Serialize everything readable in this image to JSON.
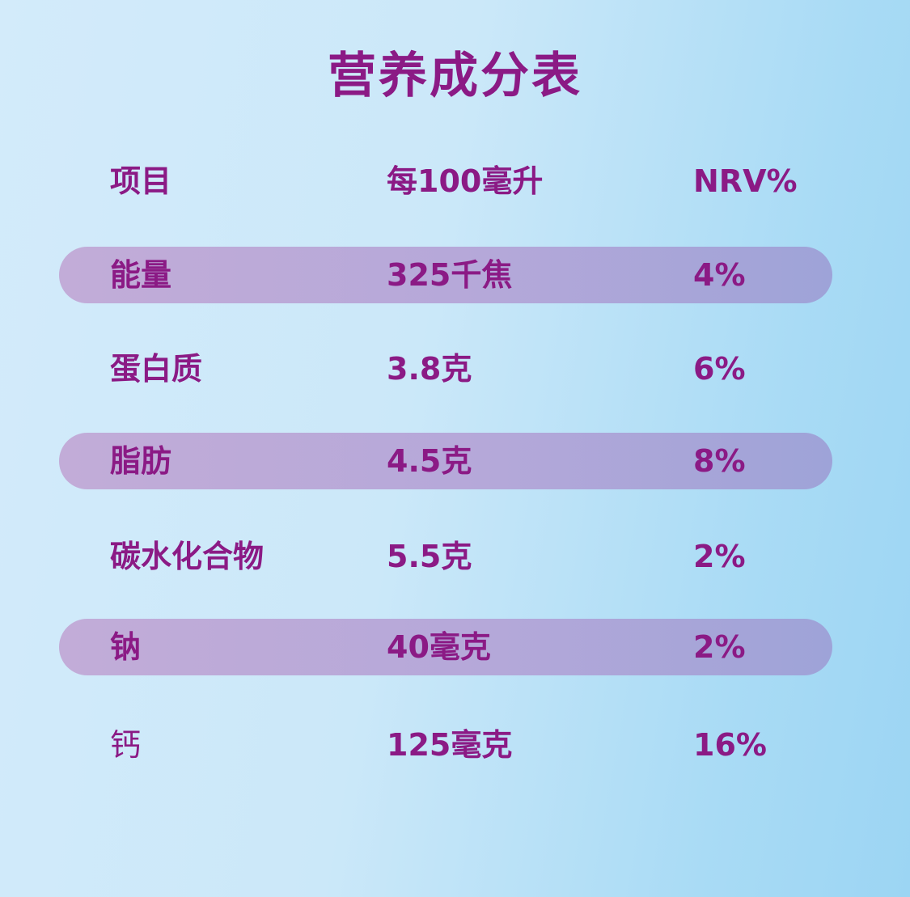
{
  "title": "营养成分表",
  "header": {
    "item": "项目",
    "per": "每100毫升",
    "nrv": "NRV%"
  },
  "rows": [
    {
      "item": "能量",
      "per": "325千焦",
      "nrv": "4%",
      "shaded": true
    },
    {
      "item": "蛋白质",
      "per": "3.8克",
      "nrv": "6%",
      "shaded": false
    },
    {
      "item": "脂肪",
      "per": "4.5克",
      "nrv": "8%",
      "shaded": true
    },
    {
      "item": "碳水化合物",
      "per": "5.5克",
      "nrv": "2%",
      "shaded": false
    },
    {
      "item": "钠",
      "per": "40毫克",
      "nrv": "2%",
      "shaded": true
    },
    {
      "item": "钙",
      "per": "125毫克",
      "nrv": "16%",
      "shaded": false
    }
  ],
  "colors": {
    "text": "#8b1a85",
    "row_band": "#bba9d8",
    "background": "#cbe8f9"
  }
}
